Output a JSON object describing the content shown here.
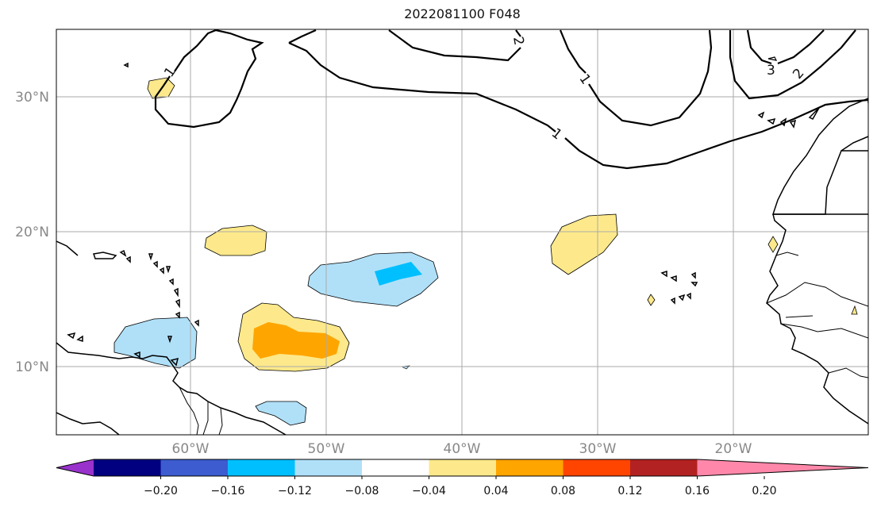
{
  "title": "2022081100 F048",
  "map": {
    "lat_labels": [
      "30°N",
      "20°N",
      "10°N"
    ],
    "lon_labels": [
      "60°W",
      "50°W",
      "40°W",
      "30°W",
      "20°W"
    ],
    "contour_labels": [
      "1",
      "1",
      "1",
      "2",
      "2",
      "3"
    ]
  },
  "colorbar": {
    "ticks": [
      "−0.20",
      "−0.16",
      "−0.12",
      "−0.08",
      "−0.04",
      "0.04",
      "0.08",
      "0.12",
      "0.16",
      "0.20"
    ],
    "colors": [
      "#9932cc",
      "#000080",
      "#3c5ccf",
      "#00bfff",
      "#b0e0f8",
      "#ffffff",
      "#fde98b",
      "#ffa500",
      "#ff4500",
      "#b22222",
      "#ff88aa"
    ]
  }
}
